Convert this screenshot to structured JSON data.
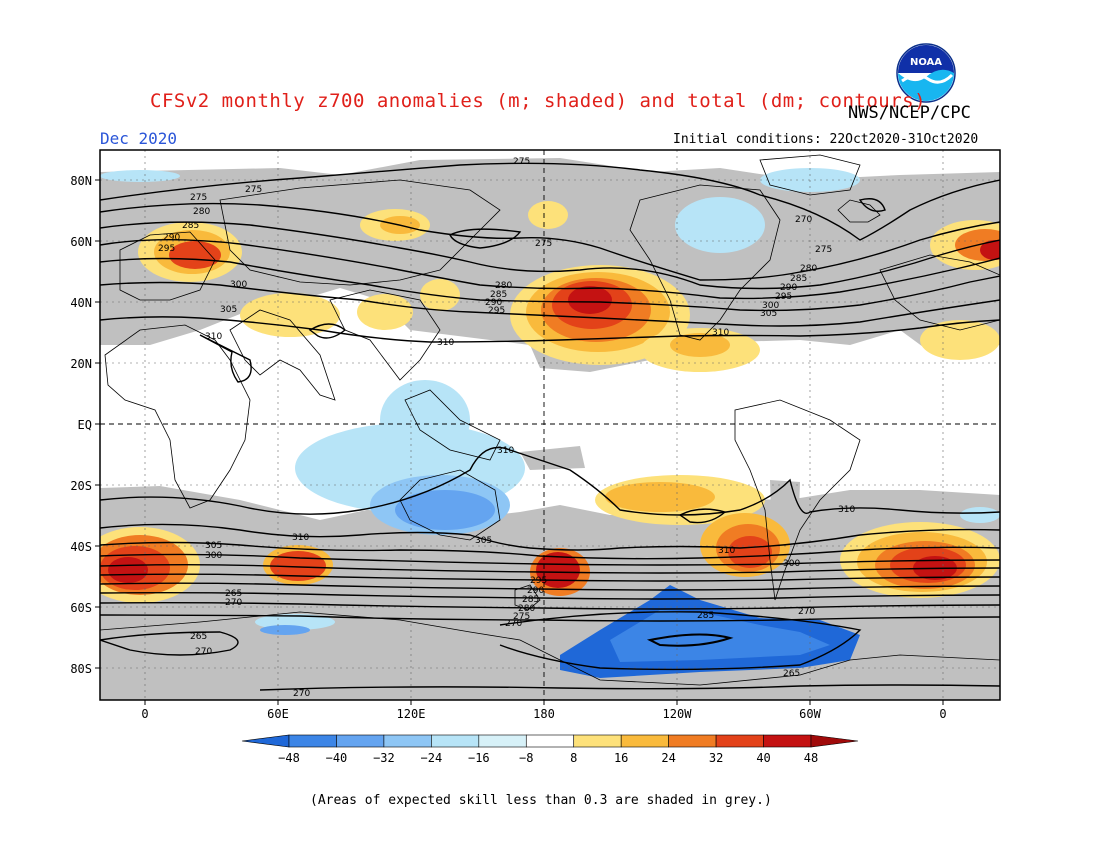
{
  "header": {
    "title": "CFSv2 monthly z700 anomalies (m; shaded) and total (dm; contours)",
    "agency": "NWS/NCEP/CPC",
    "period": "Dec 2020",
    "initial_conditions": "Initial conditions: 22Oct2020-31Oct2020",
    "logo_text": "NOAA"
  },
  "map": {
    "lat_labels": [
      "80N",
      "60N",
      "40N",
      "20N",
      "EQ",
      "20S",
      "40S",
      "60S",
      "80S"
    ],
    "lon_labels": [
      "0",
      "60E",
      "120E",
      "180",
      "120W",
      "60W",
      "0"
    ],
    "contour_labels": [
      "275",
      "275",
      "275",
      "270",
      "275",
      "280",
      "285",
      "290",
      "295",
      "300",
      "305",
      "310",
      "310",
      "310",
      "310",
      "310",
      "305",
      "300",
      "295",
      "290",
      "285",
      "280",
      "275",
      "270",
      "265",
      "270",
      "265",
      "270",
      "285",
      "280",
      "285",
      "290",
      "295",
      "300",
      "305",
      "310",
      "310",
      "305",
      "300",
      "295",
      "290",
      "285",
      "280",
      "275",
      "270",
      "265",
      "270"
    ],
    "colors": {
      "grey_mask": "#c0c0c0",
      "neg48": "#1f68d8",
      "neg40": "#3c85e6",
      "neg32": "#64a4f0",
      "neg24": "#8ec6f5",
      "neg16": "#b7e4f7",
      "pos8": "#fde17a",
      "pos16": "#f9ba3c",
      "pos24": "#f07c23",
      "pos32": "#e34219",
      "pos40": "#c41212"
    }
  },
  "colorbar": {
    "labels": [
      "-48",
      "-40",
      "-32",
      "-24",
      "-16",
      "-8",
      "8",
      "16",
      "24",
      "32",
      "40",
      "48"
    ],
    "colors": [
      "#1f68d8",
      "#3c85e6",
      "#64a4f0",
      "#8ec6f5",
      "#b7e4f7",
      "#d7f1f8",
      "#ffffff",
      "#fde17a",
      "#f9ba3c",
      "#f07c23",
      "#e34219",
      "#c41212",
      "#a00a0a"
    ]
  },
  "footnote": "(Areas of expected skill less than 0.3 are shaded in grey.)"
}
